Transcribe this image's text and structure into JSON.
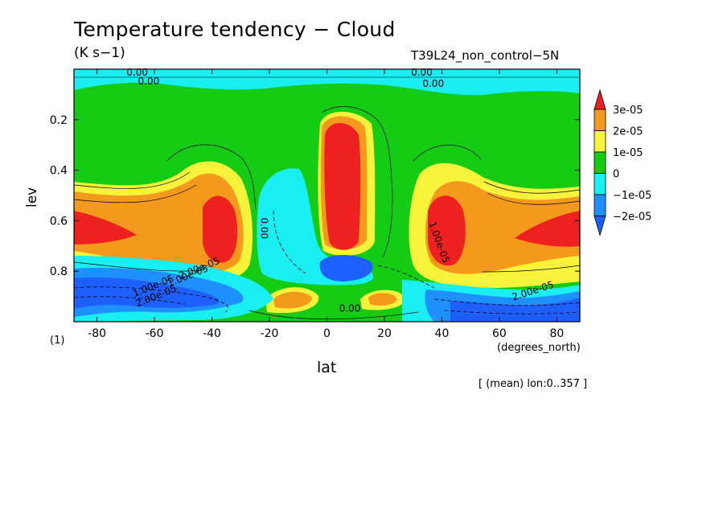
{
  "chart_data": {
    "type": "heatmap",
    "title": "Temperature tendency − Cloud",
    "subtitle": "(K s−1)",
    "run_label": "T39L24_non_control−5N",
    "xlabel": "lat",
    "x_units": "(degrees_north)",
    "ylabel": "lev",
    "y_units": "(1)",
    "averaging_note": "[ (mean) lon:0..357 ]",
    "xlim": [
      -88,
      88
    ],
    "ylim": [
      1.0,
      0.0
    ],
    "x_ticks": [
      -80,
      -60,
      -40,
      -20,
      0,
      20,
      40,
      60,
      80
    ],
    "x_tick_labels": [
      "-80",
      "-60",
      "-40",
      "-20",
      "0",
      "20",
      "40",
      "60",
      "80"
    ],
    "y_ticks": [
      0.2,
      0.4,
      0.6,
      0.8
    ],
    "y_tick_labels": [
      "0.2",
      "0.4",
      "0.6",
      "0.8"
    ],
    "legend": {
      "placement": "right",
      "labels": [
        "3e-05",
        "2e-05",
        "1e-05",
        "0",
        "−1e-05",
        "−2e-05"
      ],
      "colors": [
        "#ef2020",
        "#f39a1d",
        "#f7f23a",
        "#15cc15",
        "#19eef3",
        "#1e90ff",
        "#1e60ff"
      ]
    },
    "levels": [
      -2e-05,
      -1e-05,
      0,
      1e-05,
      2e-05,
      3e-05
    ],
    "regions": [
      {
        "range": ">3e-05",
        "lat": [
          -1,
          12
        ],
        "lev": [
          0.2,
          0.72
        ]
      },
      {
        "range": ">3e-05",
        "lat": [
          -40,
          -27
        ],
        "lev": [
          0.52,
          0.75
        ]
      },
      {
        "range": ">3e-05",
        "lat": [
          36,
          50
        ],
        "lev": [
          0.52,
          0.78
        ]
      },
      {
        "range": ">3e-05",
        "lat": [
          67,
          88
        ],
        "lev": [
          0.57,
          0.7
        ]
      },
      {
        "range": ">3e-05",
        "lat": [
          -88,
          -70
        ],
        "lev": [
          0.57,
          0.7
        ]
      },
      {
        "range": "<-2e-05",
        "lat": [
          -2,
          16
        ],
        "lev": [
          0.73,
          0.83
        ]
      },
      {
        "range": "<-2e-05",
        "lat": [
          -88,
          -40
        ],
        "lev": [
          0.78,
          1.0
        ]
      },
      {
        "range": "<-2e-05",
        "lat": [
          36,
          88
        ],
        "lev": [
          0.86,
          1.0
        ]
      },
      {
        "range": "<0",
        "lat": [
          -22,
          -5
        ],
        "lev": [
          0.38,
          0.85
        ]
      },
      {
        "range": "<0",
        "lat": [
          -88,
          88
        ],
        "lev": [
          0.0,
          0.08
        ]
      }
    ],
    "contour_labels": [
      "0.00",
      "0.00",
      "0.00",
      "0.00",
      "0.00",
      "0.00",
      "2.00e-05",
      "1.00e-05",
      "1.00e-05",
      "2.00e-05",
      "1.00e-05",
      "2.00e-05"
    ],
    "grid": false
  }
}
